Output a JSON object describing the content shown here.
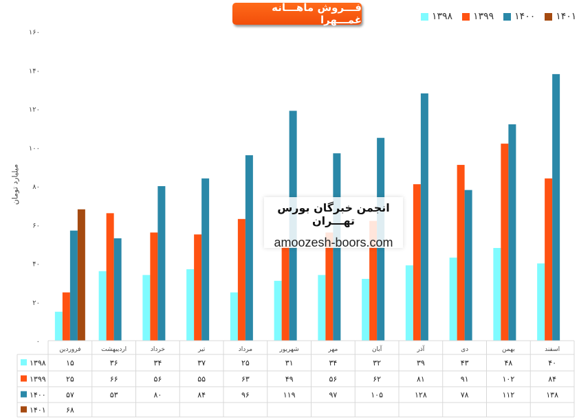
{
  "chart_data": {
    "type": "bar",
    "title": "فـــروش ماهـــانه غمـــهرا",
    "ylabel": "میلیارد تومان",
    "xlabel": "",
    "ylim": [
      0,
      160
    ],
    "yticks": [
      0,
      20,
      40,
      60,
      80,
      100,
      120,
      140,
      160
    ],
    "legend_position": "top-right",
    "categories": [
      "فروردین",
      "اردیبهشت",
      "خرداد",
      "تیر",
      "مرداد",
      "شهریور",
      "مهر",
      "آبان",
      "آذر",
      "دی",
      "بهمن",
      "اسفند"
    ],
    "series": [
      {
        "name": "۱۳۹۸",
        "color": "#7ffbff",
        "values": [
          15,
          36,
          34,
          37,
          25,
          31,
          34,
          32,
          39,
          43,
          48,
          40
        ]
      },
      {
        "name": "۱۳۹۹",
        "color": "#ff5212",
        "values": [
          25,
          66,
          56,
          55,
          63,
          49,
          56,
          62,
          81,
          91,
          102,
          84
        ]
      },
      {
        "name": "۱۴۰۰",
        "color": "#2a88a8",
        "values": [
          57,
          53,
          80,
          84,
          96,
          119,
          97,
          105,
          128,
          78,
          112,
          138
        ]
      },
      {
        "name": "۱۴۰۱",
        "color": "#a54a10",
        "values": [
          68,
          null,
          null,
          null,
          null,
          null,
          null,
          null,
          null,
          null,
          null,
          null
        ]
      }
    ],
    "data_table": true
  },
  "watermark": {
    "line1": "انجمن خبرگان بورس تهـــران",
    "line2": "amoozesh-boors.com"
  }
}
